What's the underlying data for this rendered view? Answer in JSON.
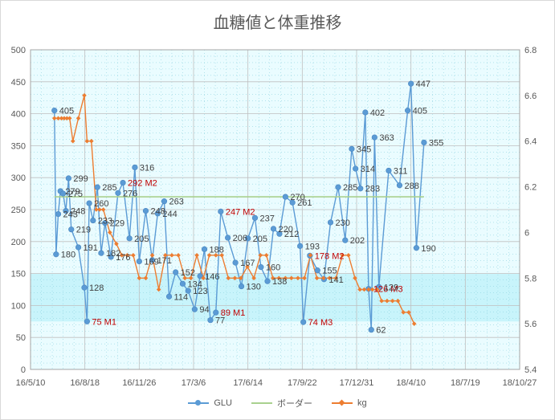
{
  "chart_data": {
    "type": "line",
    "title": "血糖値と体重推移",
    "x_ticks": [
      "16/5/10",
      "16/8/18",
      "16/11/26",
      "17/3/6",
      "17/6/14",
      "17/9/22",
      "17/12/31",
      "18/4/10",
      "18/7/19",
      "18/10/27"
    ],
    "y_left": {
      "min": 0,
      "max": 500,
      "step": 50,
      "ticks": [
        "0",
        "50",
        "100",
        "150",
        "200",
        "250",
        "300",
        "350",
        "400",
        "450",
        "500"
      ]
    },
    "y_right": {
      "min": 5.4,
      "max": 6.8,
      "step": 0.2,
      "ticks": [
        "5.4",
        "5.6",
        "5.8",
        "6",
        "6.2",
        "6.4",
        "6.6",
        "6.8"
      ]
    },
    "bands": [
      {
        "from": 75,
        "to": 150,
        "color": "#c8f4fb"
      }
    ],
    "series": [
      {
        "name": "GLU",
        "axis": "left",
        "color": "#5b9bd5",
        "marker": "circle",
        "points": [
          {
            "x": "2016-06-23",
            "y": 405,
            "label": "405"
          },
          {
            "x": "2016-06-26",
            "y": 180,
            "label": "180"
          },
          {
            "x": "2016-06-30",
            "y": 243,
            "label": "243"
          },
          {
            "x": "2016-07-04",
            "y": 279,
            "label": "279"
          },
          {
            "x": "2016-07-09",
            "y": 275,
            "label": "275"
          },
          {
            "x": "2016-07-14",
            "y": 248,
            "label": "248"
          },
          {
            "x": "2016-07-19",
            "y": 299,
            "label": "299"
          },
          {
            "x": "2016-07-24",
            "y": 219,
            "label": "219"
          },
          {
            "x": "2016-08-06",
            "y": 191,
            "label": "191"
          },
          {
            "x": "2016-08-17",
            "y": 128,
            "label": "128"
          },
          {
            "x": "2016-08-22",
            "y": 75,
            "label": "75 M1",
            "flag": "red"
          },
          {
            "x": "2016-08-26",
            "y": 260,
            "label": "260"
          },
          {
            "x": "2016-09-02",
            "y": 233,
            "label": "233"
          },
          {
            "x": "2016-09-10",
            "y": 285,
            "label": "285"
          },
          {
            "x": "2016-09-17",
            "y": 182,
            "label": "182"
          },
          {
            "x": "2016-09-24",
            "y": 229,
            "label": "229"
          },
          {
            "x": "2016-10-05",
            "y": 176,
            "label": "176"
          },
          {
            "x": "2016-10-18",
            "y": 276,
            "label": "276"
          },
          {
            "x": "2016-10-27",
            "y": 292,
            "label": "292 M2",
            "flag": "red"
          },
          {
            "x": "2016-11-08",
            "y": 205,
            "label": "205"
          },
          {
            "x": "2016-11-18",
            "y": 316,
            "label": "316"
          },
          {
            "x": "2016-11-26",
            "y": 169,
            "label": "169"
          },
          {
            "x": "2016-12-08",
            "y": 248,
            "label": "248"
          },
          {
            "x": "2016-12-20",
            "y": 171,
            "label": "171"
          },
          {
            "x": "2016-12-30",
            "y": 244,
            "label": "244"
          },
          {
            "x": "2017-01-11",
            "y": 263,
            "label": "263"
          },
          {
            "x": "2017-01-20",
            "y": 114,
            "label": "114"
          },
          {
            "x": "2017-02-01",
            "y": 152,
            "label": "152"
          },
          {
            "x": "2017-02-14",
            "y": 134,
            "label": "134"
          },
          {
            "x": "2017-02-24",
            "y": 123,
            "label": "123"
          },
          {
            "x": "2017-03-08",
            "y": 94,
            "label": "94"
          },
          {
            "x": "2017-03-18",
            "y": 146,
            "label": "146"
          },
          {
            "x": "2017-03-26",
            "y": 188,
            "label": "188"
          },
          {
            "x": "2017-04-06",
            "y": 77,
            "label": "77"
          },
          {
            "x": "2017-04-16",
            "y": 89,
            "label": "89 M1",
            "flag": "red"
          },
          {
            "x": "2017-04-25",
            "y": 247,
            "label": "247 M2",
            "flag": "red"
          },
          {
            "x": "2017-05-08",
            "y": 206,
            "label": "206"
          },
          {
            "x": "2017-05-22",
            "y": 167,
            "label": "167"
          },
          {
            "x": "2017-06-02",
            "y": 130,
            "label": "130"
          },
          {
            "x": "2017-06-14",
            "y": 205,
            "label": "205"
          },
          {
            "x": "2017-06-27",
            "y": 237,
            "label": "237"
          },
          {
            "x": "2017-07-08",
            "y": 160,
            "label": "160"
          },
          {
            "x": "2017-07-20",
            "y": 138,
            "label": "138"
          },
          {
            "x": "2017-07-31",
            "y": 220,
            "label": "220"
          },
          {
            "x": "2017-08-11",
            "y": 212,
            "label": "212"
          },
          {
            "x": "2017-08-22",
            "y": 270,
            "label": "270"
          },
          {
            "x": "2017-09-04",
            "y": 261,
            "label": "261"
          },
          {
            "x": "2017-09-18",
            "y": 193,
            "label": "193"
          },
          {
            "x": "2017-09-24",
            "y": 74,
            "label": "74 M3",
            "flag": "red"
          },
          {
            "x": "2017-10-06",
            "y": 178,
            "label": "178 M2",
            "flag": "red"
          },
          {
            "x": "2017-10-20",
            "y": 155,
            "label": "155"
          },
          {
            "x": "2017-11-01",
            "y": 141,
            "label": "141"
          },
          {
            "x": "2017-11-13",
            "y": 230,
            "label": "230"
          },
          {
            "x": "2017-11-27",
            "y": 285,
            "label": "285"
          },
          {
            "x": "2017-12-10",
            "y": 202,
            "label": "202"
          },
          {
            "x": "2017-12-22",
            "y": 345,
            "label": "345"
          },
          {
            "x": "2017-12-29",
            "y": 314,
            "label": "314"
          },
          {
            "x": "2018-01-07",
            "y": 283,
            "label": "283"
          },
          {
            "x": "2018-01-16",
            "y": 402,
            "label": "402"
          },
          {
            "x": "2018-01-22",
            "y": 126,
            "label": "126 M3",
            "flag": "red"
          },
          {
            "x": "2018-01-27",
            "y": 62,
            "label": "62"
          },
          {
            "x": "2018-02-02",
            "y": 363,
            "label": "363"
          },
          {
            "x": "2018-02-10",
            "y": 129,
            "label": "129"
          },
          {
            "x": "2018-02-28",
            "y": 311,
            "label": "311"
          },
          {
            "x": "2018-03-20",
            "y": 288,
            "label": "288"
          },
          {
            "x": "2018-04-04",
            "y": 405,
            "label": "405"
          },
          {
            "x": "2018-04-10",
            "y": 447,
            "label": "447"
          },
          {
            "x": "2018-04-20",
            "y": 190,
            "label": "190"
          },
          {
            "x": "2018-05-04",
            "y": 355,
            "label": "355"
          }
        ]
      },
      {
        "name": "ボーダー",
        "axis": "left",
        "color": "#a9d18e",
        "marker": "none",
        "points": [
          {
            "x": "2016-06-23",
            "y": 270
          },
          {
            "x": "2018-05-04",
            "y": 270
          }
        ]
      },
      {
        "name": "kg",
        "axis": "right",
        "color": "#ed7d31",
        "marker": "diamond",
        "points": [
          {
            "x": "2016-06-23",
            "y": 6.5
          },
          {
            "x": "2016-06-30",
            "y": 6.5
          },
          {
            "x": "2016-07-06",
            "y": 6.5
          },
          {
            "x": "2016-07-11",
            "y": 6.5
          },
          {
            "x": "2016-07-16",
            "y": 6.5
          },
          {
            "x": "2016-07-21",
            "y": 6.5
          },
          {
            "x": "2016-07-27",
            "y": 6.4
          },
          {
            "x": "2016-08-06",
            "y": 6.5
          },
          {
            "x": "2016-08-17",
            "y": 6.6
          },
          {
            "x": "2016-08-22",
            "y": 6.4
          },
          {
            "x": "2016-08-30",
            "y": 6.4
          },
          {
            "x": "2016-09-08",
            "y": 6.1
          },
          {
            "x": "2016-09-14",
            "y": 6.1
          },
          {
            "x": "2016-09-21",
            "y": 6.1
          },
          {
            "x": "2016-10-03",
            "y": 6.0
          },
          {
            "x": "2016-10-15",
            "y": 5.95
          },
          {
            "x": "2016-10-25",
            "y": 5.9
          },
          {
            "x": "2016-11-04",
            "y": 5.9
          },
          {
            "x": "2016-11-15",
            "y": 5.9
          },
          {
            "x": "2016-11-26",
            "y": 5.8
          },
          {
            "x": "2016-12-08",
            "y": 5.8
          },
          {
            "x": "2016-12-20",
            "y": 5.9
          },
          {
            "x": "2017-01-01",
            "y": 5.75
          },
          {
            "x": "2017-01-13",
            "y": 5.9
          },
          {
            "x": "2017-01-25",
            "y": 5.9
          },
          {
            "x": "2017-02-06",
            "y": 5.9
          },
          {
            "x": "2017-02-18",
            "y": 5.8
          },
          {
            "x": "2017-03-01",
            "y": 5.8
          },
          {
            "x": "2017-03-12",
            "y": 5.9
          },
          {
            "x": "2017-03-24",
            "y": 5.8
          },
          {
            "x": "2017-04-04",
            "y": 5.9
          },
          {
            "x": "2017-04-16",
            "y": 5.9
          },
          {
            "x": "2017-04-27",
            "y": 5.9
          },
          {
            "x": "2017-05-09",
            "y": 5.8
          },
          {
            "x": "2017-05-21",
            "y": 5.8
          },
          {
            "x": "2017-06-01",
            "y": 5.8
          },
          {
            "x": "2017-06-13",
            "y": 5.85
          },
          {
            "x": "2017-06-25",
            "y": 5.8
          },
          {
            "x": "2017-07-07",
            "y": 5.9
          },
          {
            "x": "2017-07-18",
            "y": 5.9
          },
          {
            "x": "2017-07-30",
            "y": 5.8
          },
          {
            "x": "2017-08-10",
            "y": 5.8
          },
          {
            "x": "2017-08-22",
            "y": 5.8
          },
          {
            "x": "2017-09-02",
            "y": 5.8
          },
          {
            "x": "2017-09-14",
            "y": 5.8
          },
          {
            "x": "2017-09-26",
            "y": 5.8
          },
          {
            "x": "2017-10-07",
            "y": 5.9
          },
          {
            "x": "2017-10-19",
            "y": 5.8
          },
          {
            "x": "2017-10-31",
            "y": 5.8
          },
          {
            "x": "2017-11-11",
            "y": 5.8
          },
          {
            "x": "2017-11-23",
            "y": 5.8
          },
          {
            "x": "2017-12-05",
            "y": 5.9
          },
          {
            "x": "2017-12-16",
            "y": 5.9
          },
          {
            "x": "2017-12-28",
            "y": 5.8
          },
          {
            "x": "2018-01-06",
            "y": 5.75
          },
          {
            "x": "2018-01-14",
            "y": 5.75
          },
          {
            "x": "2018-01-22",
            "y": 5.75
          },
          {
            "x": "2018-01-29",
            "y": 5.75
          },
          {
            "x": "2018-02-07",
            "y": 5.75
          },
          {
            "x": "2018-02-15",
            "y": 5.7
          },
          {
            "x": "2018-02-25",
            "y": 5.7
          },
          {
            "x": "2018-03-07",
            "y": 5.7
          },
          {
            "x": "2018-03-17",
            "y": 5.7
          },
          {
            "x": "2018-03-27",
            "y": 5.65
          },
          {
            "x": "2018-04-06",
            "y": 5.65
          },
          {
            "x": "2018-04-16",
            "y": 5.6
          }
        ]
      }
    ],
    "legend_position": "bottom",
    "grid": true
  }
}
